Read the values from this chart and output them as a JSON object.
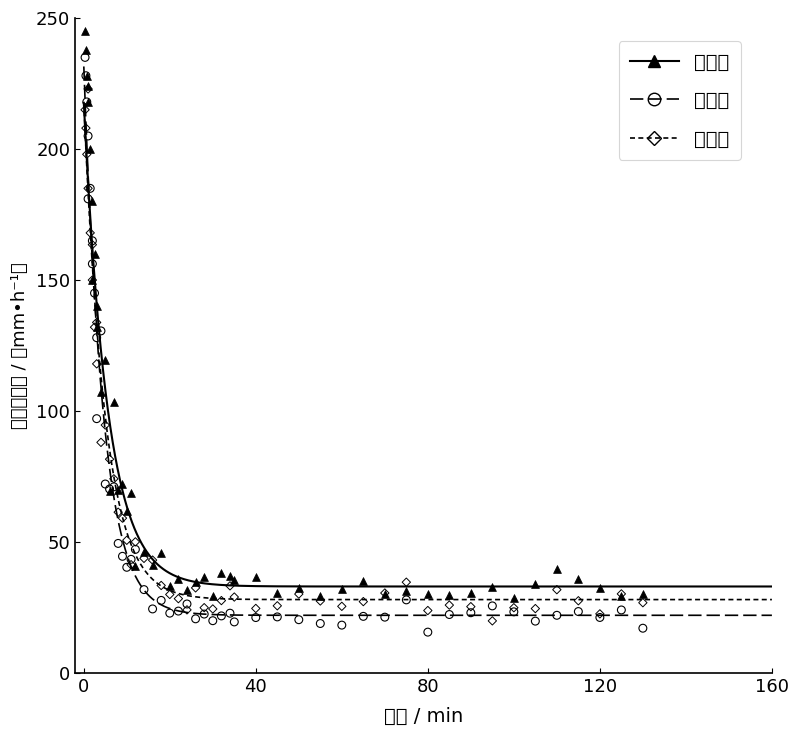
{
  "xlabel": "时间 / min",
  "ylabel": "土壤入渗率 / （mm•h⁻¹）",
  "xlim": [
    -2,
    160
  ],
  "ylim": [
    0,
    250
  ],
  "xticks": [
    0,
    40,
    80,
    120,
    160
  ],
  "yticks": [
    0,
    50,
    100,
    150,
    200,
    250
  ],
  "legend_labels": [
    "重复一",
    "重复二",
    "重复三"
  ],
  "curve1_params": {
    "a": 185,
    "b": 0.18,
    "c": 33
  },
  "curve2_params": {
    "a": 210,
    "b": 0.22,
    "c": 22
  },
  "curve3_params": {
    "a": 190,
    "b": 0.2,
    "c": 28
  },
  "bg_color": "#ffffff"
}
